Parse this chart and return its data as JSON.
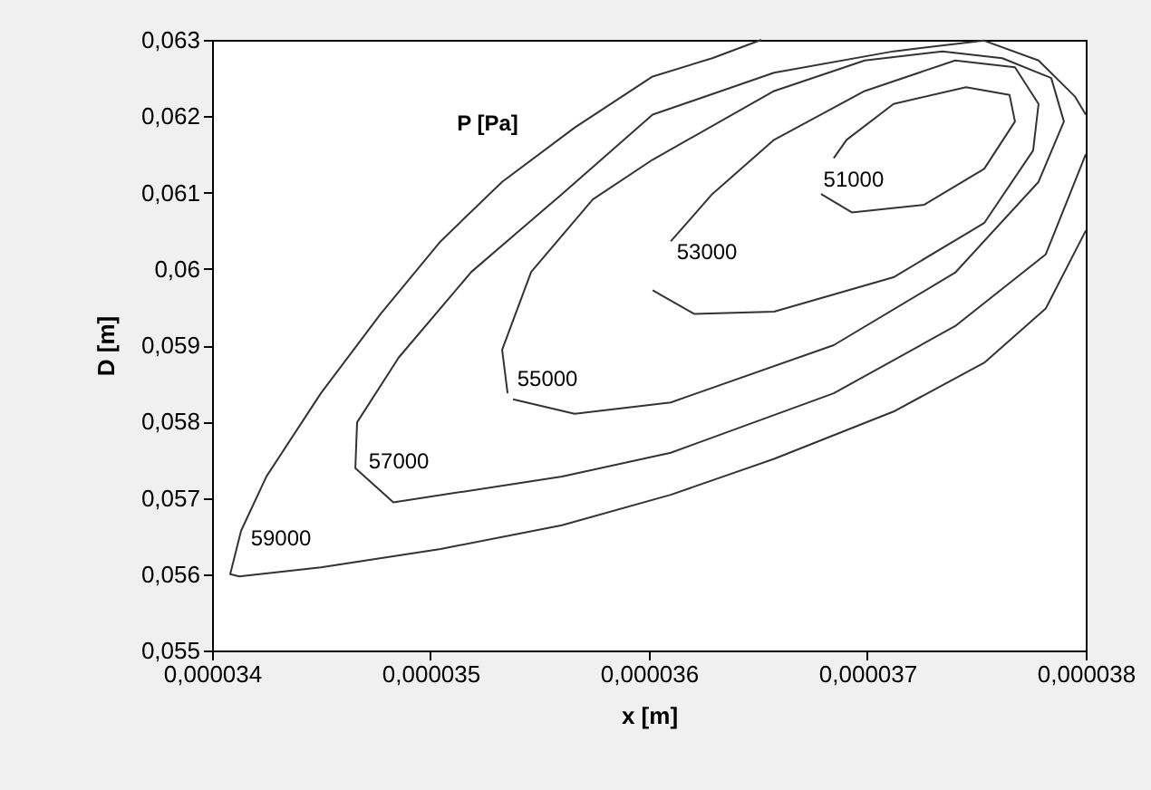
{
  "chart_data": {
    "type": "line",
    "xlabel": "x  [m]",
    "ylabel": "D  [m]",
    "annotations": [
      "P [Pa]"
    ],
    "xlim": [
      3.4e-05,
      3.8e-05
    ],
    "ylim": [
      0.055,
      0.063
    ],
    "xticks": [
      {
        "value": 3.4e-05,
        "label": "0,000034"
      },
      {
        "value": 3.5e-05,
        "label": "0,000035"
      },
      {
        "value": 3.6e-05,
        "label": "0,000036"
      },
      {
        "value": 3.7e-05,
        "label": "0,000037"
      },
      {
        "value": 3.8e-05,
        "label": "0,000038"
      }
    ],
    "yticks": [
      {
        "value": 0.055,
        "label": "0,055"
      },
      {
        "value": 0.056,
        "label": "0,056"
      },
      {
        "value": 0.057,
        "label": "0,057"
      },
      {
        "value": 0.058,
        "label": "0,058"
      },
      {
        "value": 0.059,
        "label": "0,059"
      },
      {
        "value": 0.06,
        "label": "0,06"
      },
      {
        "value": 0.061,
        "label": "0,061"
      },
      {
        "value": 0.062,
        "label": "0,062"
      },
      {
        "value": 0.063,
        "label": "0,063"
      }
    ],
    "grid": false,
    "marker": "none",
    "line_style": "solid",
    "series": [
      {
        "name": "59000",
        "color": "#333333",
        "x": [
          3.6514e-05,
          3.629e-05,
          3.6017e-05,
          3.566e-05,
          3.5328e-05,
          3.5046e-05,
          3.4772e-05,
          3.4498e-05,
          3.4249e-05,
          3.4133e-05,
          3.4083e-05,
          3.4124e-05,
          3.4498e-05,
          3.5046e-05,
          3.5602e-05,
          3.61e-05,
          3.6573e-05,
          3.712e-05,
          3.7535e-05,
          3.7817e-05,
          3.8e-05
        ],
        "values": [
          0.063,
          0.06276,
          0.06252,
          0.06185,
          0.06114,
          0.06036,
          0.05941,
          0.05837,
          0.05728,
          0.05657,
          0.056,
          0.05597,
          0.05609,
          0.05633,
          0.05664,
          0.05704,
          0.05751,
          0.05813,
          0.05877,
          0.05948,
          0.0605
        ]
      },
      {
        "name": "57000",
        "color": "#333333",
        "x": [
          3.8e-05,
          3.795e-05,
          3.7784e-05,
          3.7535e-05,
          3.712e-05,
          3.6573e-05,
          3.6017e-05,
          3.5602e-05,
          3.5187e-05,
          3.4855e-05,
          3.4664e-05,
          3.4656e-05,
          3.483e-05,
          3.5602e-05,
          3.61e-05,
          3.6846e-05,
          3.7402e-05,
          3.7817e-05,
          3.8e-05
        ],
        "values": [
          0.06202,
          0.06226,
          0.06273,
          0.06299,
          0.06285,
          0.06257,
          0.06202,
          0.06098,
          0.05996,
          0.05884,
          0.05799,
          0.05739,
          0.05694,
          0.05728,
          0.05759,
          0.05837,
          0.05925,
          0.06019,
          0.0615
        ]
      },
      {
        "name": "55000",
        "color": "#333333",
        "x": [
          3.5378e-05,
          3.566e-05,
          3.61e-05,
          3.6846e-05,
          3.7402e-05,
          3.7784e-05,
          3.79e-05,
          3.7842e-05,
          3.7618e-05,
          3.7344e-05,
          3.6988e-05,
          3.6573e-05,
          3.6017e-05,
          3.5743e-05,
          3.5461e-05,
          3.5328e-05,
          3.5353e-05
        ],
        "values": [
          0.05829,
          0.0581,
          0.05825,
          0.059,
          0.05995,
          0.06114,
          0.06193,
          0.0625,
          0.06276,
          0.06285,
          0.06273,
          0.06233,
          0.06143,
          0.06091,
          0.05996,
          0.05894,
          0.05837
        ]
      },
      {
        "name": "53000",
        "color": "#333333",
        "x": [
          3.6017e-05,
          3.6207e-05,
          3.6573e-05,
          3.712e-05,
          3.7535e-05,
          3.7759e-05,
          3.7784e-05,
          3.7676e-05,
          3.7402e-05,
          3.6988e-05,
          3.6573e-05,
          3.629e-05,
          3.61e-05
        ],
        "values": [
          0.05972,
          0.05941,
          0.05944,
          0.05989,
          0.0606,
          0.06155,
          0.06216,
          0.06264,
          0.06273,
          0.06233,
          0.06169,
          0.06098,
          0.06036
        ]
      },
      {
        "name": "51000",
        "color": "#333333",
        "x": [
          3.6788e-05,
          3.6929e-05,
          3.7261e-05,
          3.7535e-05,
          3.7676e-05,
          3.7651e-05,
          3.7452e-05,
          3.712e-05,
          3.6905e-05,
          3.6846e-05
        ],
        "values": [
          0.06098,
          0.06074,
          0.06084,
          0.06131,
          0.06193,
          0.06228,
          0.06238,
          0.06216,
          0.06169,
          0.06145
        ]
      }
    ]
  }
}
